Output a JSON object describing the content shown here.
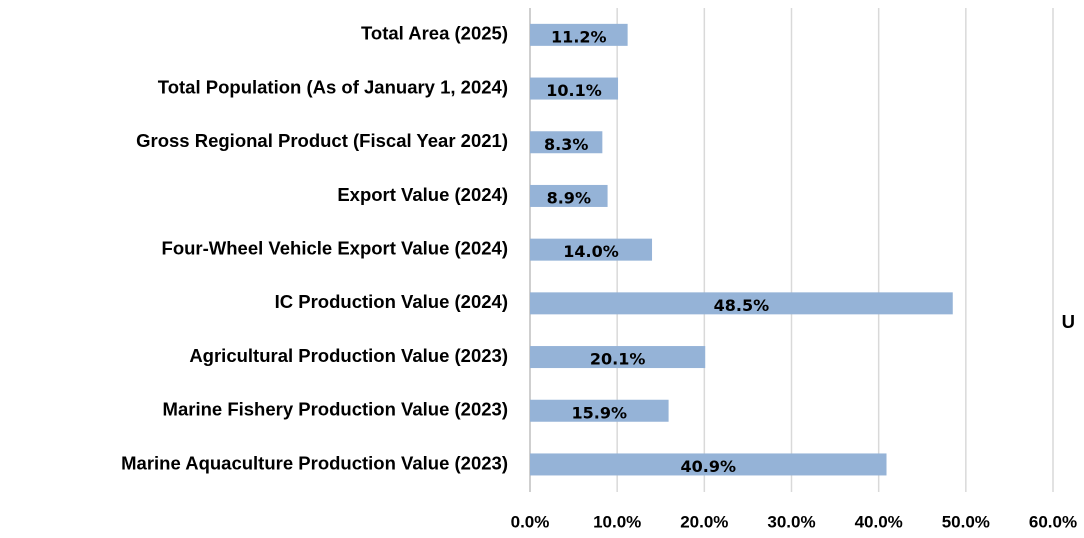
{
  "chart_data": {
    "type": "bar",
    "orientation": "horizontal",
    "categories": [
      "Total Area (2025)",
      "Total Population (As of January 1, 2024)",
      "Gross Regional Product (Fiscal Year 2021)",
      "Export Value (2024)",
      "Four-Wheel Vehicle Export Value (2024)",
      "IC Production Value (2024)",
      "Agricultural Production Value (2023)",
      "Marine Fishery Production Value (2023)",
      "Marine Aquaculture Production Value (2023)"
    ],
    "values": [
      11.2,
      10.1,
      8.3,
      8.9,
      14.0,
      48.5,
      20.1,
      15.9,
      40.9
    ],
    "value_labels": [
      "11.2%",
      "10.1%",
      "8.3%",
      "8.9%",
      "14.0%",
      "48.5%",
      "20.1%",
      "15.9%",
      "40.9%"
    ],
    "color": "#95b3d7",
    "xlim": [
      0,
      60
    ],
    "xticks": [
      {
        "value": 0,
        "label": "0.0%"
      },
      {
        "value": 10,
        "label": "10.0%"
      },
      {
        "value": 20,
        "label": "20.0%"
      },
      {
        "value": 30,
        "label": "30.0%"
      },
      {
        "value": 40,
        "label": "40.0%"
      },
      {
        "value": 50,
        "label": "50.0%"
      },
      {
        "value": 60,
        "label": "60.0%"
      }
    ],
    "grid": true,
    "annotation": "U"
  }
}
